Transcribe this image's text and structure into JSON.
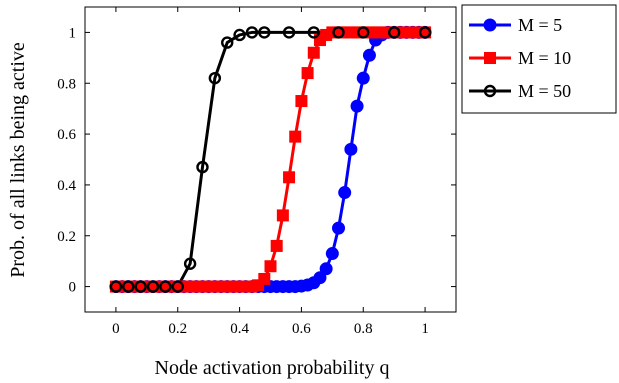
{
  "chart_data": {
    "type": "line",
    "title": "",
    "xlabel": "Node activation probability q",
    "ylabel": "Prob. of all links being active",
    "xlim": [
      -0.1,
      1.1
    ],
    "ylim": [
      -0.1,
      1.1
    ],
    "x_ticks": [
      "0",
      "0.2",
      "0.4",
      "0.6",
      "0.8",
      "1"
    ],
    "y_ticks": [
      "0",
      "0.2",
      "0.4",
      "0.6",
      "0.8",
      "1"
    ],
    "grid": false,
    "legend_position": "outside-top-right",
    "series": [
      {
        "name": "M = 5",
        "color": "#0000ff",
        "marker": "circle-filled",
        "x": [
          0,
          0.02,
          0.04,
          0.06,
          0.08,
          0.1,
          0.12,
          0.14,
          0.16,
          0.18,
          0.2,
          0.22,
          0.24,
          0.26,
          0.28,
          0.3,
          0.32,
          0.34,
          0.36,
          0.38,
          0.4,
          0.42,
          0.44,
          0.46,
          0.48,
          0.5,
          0.52,
          0.54,
          0.56,
          0.58,
          0.6,
          0.62,
          0.64,
          0.66,
          0.68,
          0.7,
          0.72,
          0.74,
          0.76,
          0.78,
          0.8,
          0.82,
          0.84,
          0.86,
          0.88,
          0.9,
          0.92,
          0.94,
          0.96,
          0.98,
          1.0
        ],
        "y": [
          0,
          0,
          0,
          0,
          0,
          0,
          0,
          0,
          0,
          0,
          0,
          0,
          0,
          0,
          0,
          0,
          0,
          0,
          0,
          0,
          0,
          0,
          0,
          0,
          0,
          0,
          0,
          0,
          0,
          0,
          0.002,
          0.006,
          0.015,
          0.035,
          0.07,
          0.13,
          0.23,
          0.37,
          0.54,
          0.71,
          0.82,
          0.91,
          0.97,
          0.99,
          1,
          1,
          1,
          1,
          1,
          1,
          1
        ]
      },
      {
        "name": "M = 10",
        "color": "#ff0000",
        "marker": "square-filled",
        "x": [
          0,
          0.02,
          0.04,
          0.06,
          0.08,
          0.1,
          0.12,
          0.14,
          0.16,
          0.18,
          0.2,
          0.22,
          0.24,
          0.26,
          0.28,
          0.3,
          0.32,
          0.34,
          0.36,
          0.38,
          0.4,
          0.42,
          0.44,
          0.46,
          0.48,
          0.5,
          0.52,
          0.54,
          0.56,
          0.58,
          0.6,
          0.62,
          0.64,
          0.66,
          0.68,
          0.7,
          0.72,
          0.74,
          0.76,
          0.78,
          0.8,
          0.82,
          0.84,
          0.86,
          0.88,
          0.9,
          0.92,
          0.94,
          0.96,
          0.98,
          1.0
        ],
        "y": [
          0,
          0,
          0,
          0,
          0,
          0,
          0,
          0,
          0,
          0,
          0,
          0,
          0,
          0,
          0,
          0,
          0,
          0,
          0,
          0,
          0,
          0,
          0,
          0.005,
          0.03,
          0.08,
          0.16,
          0.28,
          0.43,
          0.59,
          0.73,
          0.84,
          0.92,
          0.97,
          0.99,
          1,
          1,
          1,
          1,
          1,
          1,
          1,
          1,
          1,
          1,
          1,
          1,
          1,
          1,
          1,
          1
        ]
      },
      {
        "name": "M = 50",
        "color": "#000000",
        "marker": "circle-open",
        "x": [
          0,
          0.04,
          0.08,
          0.12,
          0.16,
          0.2,
          0.24,
          0.28,
          0.32,
          0.36,
          0.4,
          0.44,
          0.48,
          0.56,
          0.64,
          0.72,
          0.8,
          0.9,
          1.0
        ],
        "y": [
          0,
          0,
          0,
          0,
          0,
          0,
          0.09,
          0.47,
          0.82,
          0.96,
          0.99,
          1,
          1,
          1,
          1,
          1,
          1,
          1,
          1
        ]
      }
    ]
  }
}
